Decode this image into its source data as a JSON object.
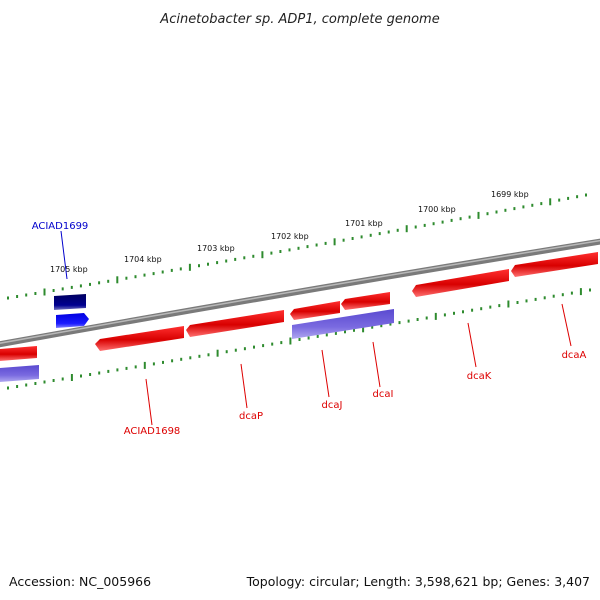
{
  "title": "Acinetobacter sp. ADP1, complete genome",
  "footer": {
    "accession": "Accession: NC_005966",
    "summary": "Topology: circular; Length: 3,598,621 bp; Genes: 3,407"
  },
  "colors": {
    "backbone": "#8a8a8a",
    "tick": "#2e8b2e",
    "forward_gene": "#e01010",
    "forward_gene_hilite": "#ff6a6a",
    "reverse_gene_dark": "#000080",
    "reverse_gene": "#1a1aff",
    "reverse_cds": "#6a5acd",
    "label_red": "#dd0000",
    "label_blue": "#0000cc"
  },
  "scale_labels": [
    "1705 kbp",
    "1704 kbp",
    "1703 kbp",
    "1702 kbp",
    "1701 kbp",
    "1700 kbp",
    "1699 kbp"
  ],
  "gene_labels": [
    {
      "name": "ACIAD1699",
      "color": "blue"
    },
    {
      "name": "ACIAD1698",
      "color": "red"
    },
    {
      "name": "dcaP",
      "color": "red"
    },
    {
      "name": "dcaJ",
      "color": "red"
    },
    {
      "name": "dcaI",
      "color": "red"
    },
    {
      "name": "dcaK",
      "color": "red"
    },
    {
      "name": "dcaA",
      "color": "red"
    }
  ]
}
